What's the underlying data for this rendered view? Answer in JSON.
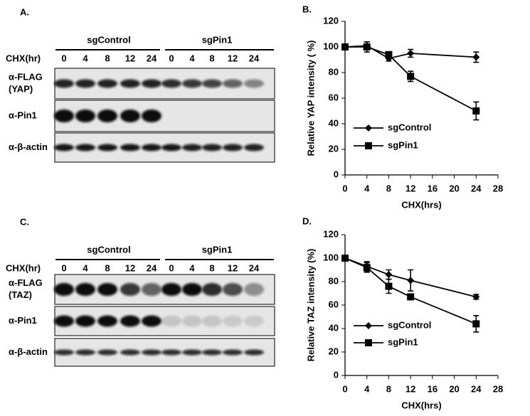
{
  "blots": [
    {
      "panel_label": "A.",
      "groups": [
        "sgControl",
        "sgPin1"
      ],
      "lane_header": "CHX(hr)",
      "lanes": [
        "0",
        "4",
        "8",
        "12",
        "24",
        "0",
        "4",
        "8",
        "12",
        "24"
      ],
      "rows": [
        [
          "α-FLAG",
          "(YAP)"
        ],
        [
          "α-Pin1"
        ],
        [
          "α-β-actin"
        ]
      ]
    },
    {
      "panel_label": "C.",
      "groups": [
        "sgControl",
        "sgPin1"
      ],
      "lane_header": "CHX(hr)",
      "lanes": [
        "0",
        "4",
        "8",
        "12",
        "24",
        "0",
        "4",
        "8",
        "12",
        "24"
      ],
      "rows": [
        [
          "α-FLAG",
          "(TAZ)"
        ],
        [
          "α-Pin1"
        ],
        [
          "α-β-actin"
        ]
      ]
    }
  ],
  "chart_data": [
    {
      "type": "line",
      "panel_label": "B.",
      "xlabel": "CHX(hrs)",
      "ylabel": "Relative YAP intensity ( %)",
      "x": [
        0,
        4,
        8,
        12,
        24
      ],
      "xlim": [
        0,
        28
      ],
      "xticks": [
        0,
        4,
        8,
        12,
        16,
        20,
        24,
        28
      ],
      "ylim": [
        0,
        120
      ],
      "yticks": [
        0,
        20,
        40,
        60,
        80,
        100,
        120
      ],
      "legend": "center-left",
      "series": [
        {
          "name": "sgControl",
          "color": "#000000",
          "marker": "diamond",
          "values": [
            100,
            101,
            91,
            95,
            92
          ],
          "errors": [
            2,
            3,
            2,
            3,
            4
          ]
        },
        {
          "name": "sgPin1",
          "color": "#000000",
          "marker": "square",
          "values": [
            100,
            100,
            94,
            77,
            50
          ],
          "errors": [
            2,
            4,
            2,
            4,
            7
          ]
        }
      ]
    },
    {
      "type": "line",
      "panel_label": "D.",
      "xlabel": "CHX(hrs)",
      "ylabel": "Relative  TAZ intensity (%)",
      "x": [
        0,
        4,
        8,
        12,
        24
      ],
      "xlim": [
        0,
        28
      ],
      "xticks": [
        0,
        4,
        8,
        12,
        16,
        20,
        24,
        28
      ],
      "ylim": [
        0,
        120
      ],
      "yticks": [
        0,
        20,
        40,
        60,
        80,
        100,
        120
      ],
      "legend": "center-left",
      "series": [
        {
          "name": "sgControl",
          "color": "#000000",
          "marker": "diamond",
          "values": [
            100,
            93,
            86,
            81,
            67
          ],
          "errors": [
            0,
            4,
            4,
            9,
            2
          ]
        },
        {
          "name": "sgPin1",
          "color": "#000000",
          "marker": "square",
          "values": [
            100,
            92,
            76,
            67,
            44
          ],
          "errors": [
            0,
            4,
            6,
            0,
            7
          ]
        }
      ]
    }
  ]
}
